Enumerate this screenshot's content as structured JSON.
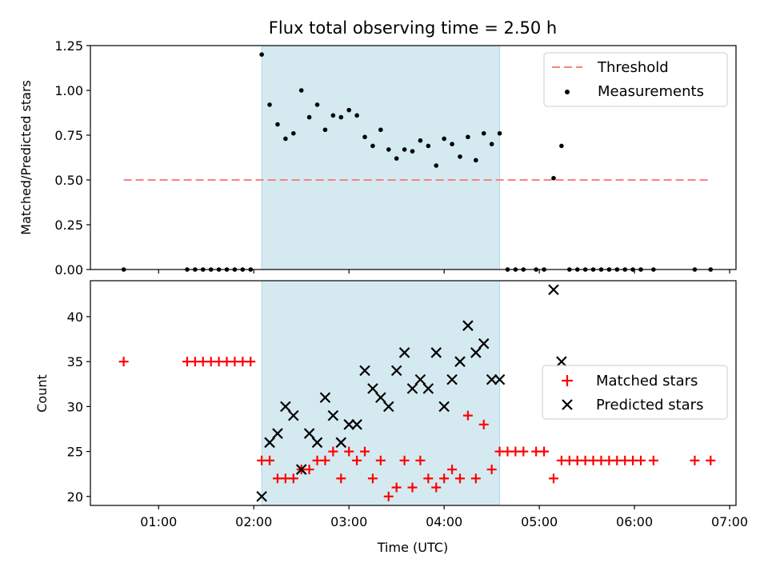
{
  "chart_data": [
    {
      "type": "scatter",
      "title": "Flux total observing time = 2.50 h",
      "xlabel": "",
      "ylabel": "Matched/Predicted stars",
      "xlim": [
        "00:17",
        "07:04"
      ],
      "ylim": [
        0,
        1.25
      ],
      "xticks": [
        "01:00",
        "02:00",
        "03:00",
        "04:00",
        "05:00",
        "06:00",
        "07:00"
      ],
      "yticks": [
        "0.00",
        "0.25",
        "0.50",
        "0.75",
        "1.00",
        "1.25"
      ],
      "highlight_span": {
        "start": "02:05",
        "end": "04:35",
        "color": "#d4eaf0"
      },
      "threshold": {
        "name": "Threshold",
        "value": 0.5,
        "x_start": "00:38",
        "x_end": "06:48",
        "color": "#ff7f7f"
      },
      "legend_position": "top-right",
      "series": [
        {
          "name": "Measurements",
          "color": "#000000",
          "marker": "dot",
          "points": [
            [
              "00:38",
              0
            ],
            [
              "01:18",
              0
            ],
            [
              "01:23",
              0
            ],
            [
              "01:28",
              0
            ],
            [
              "01:33",
              0
            ],
            [
              "01:38",
              0
            ],
            [
              "01:43",
              0
            ],
            [
              "01:48",
              0
            ],
            [
              "01:53",
              0
            ],
            [
              "01:58",
              0
            ],
            [
              "02:05",
              1.2
            ],
            [
              "02:10",
              0.92
            ],
            [
              "02:15",
              0.81
            ],
            [
              "02:20",
              0.73
            ],
            [
              "02:25",
              0.76
            ],
            [
              "02:30",
              1.0
            ],
            [
              "02:35",
              0.85
            ],
            [
              "02:40",
              0.92
            ],
            [
              "02:45",
              0.78
            ],
            [
              "02:50",
              0.86
            ],
            [
              "02:55",
              0.85
            ],
            [
              "03:00",
              0.89
            ],
            [
              "03:05",
              0.86
            ],
            [
              "03:10",
              0.74
            ],
            [
              "03:15",
              0.69
            ],
            [
              "03:20",
              0.78
            ],
            [
              "03:25",
              0.67
            ],
            [
              "03:30",
              0.62
            ],
            [
              "03:35",
              0.67
            ],
            [
              "03:40",
              0.66
            ],
            [
              "03:45",
              0.72
            ],
            [
              "03:50",
              0.69
            ],
            [
              "03:55",
              0.58
            ],
            [
              "04:00",
              0.73
            ],
            [
              "04:05",
              0.7
            ],
            [
              "04:10",
              0.63
            ],
            [
              "04:15",
              0.74
            ],
            [
              "04:20",
              0.61
            ],
            [
              "04:25",
              0.76
            ],
            [
              "04:30",
              0.7
            ],
            [
              "04:35",
              0.76
            ],
            [
              "04:40",
              0
            ],
            [
              "04:45",
              0
            ],
            [
              "04:50",
              0
            ],
            [
              "04:58",
              0
            ],
            [
              "05:03",
              0
            ],
            [
              "05:09",
              0.51
            ],
            [
              "05:14",
              0.69
            ],
            [
              "05:19",
              0
            ],
            [
              "05:24",
              0
            ],
            [
              "05:29",
              0
            ],
            [
              "05:34",
              0
            ],
            [
              "05:39",
              0
            ],
            [
              "05:44",
              0
            ],
            [
              "05:49",
              0
            ],
            [
              "05:54",
              0
            ],
            [
              "05:59",
              0
            ],
            [
              "06:04",
              0
            ],
            [
              "06:12",
              0
            ],
            [
              "06:38",
              0
            ],
            [
              "06:48",
              0
            ]
          ]
        }
      ]
    },
    {
      "type": "scatter",
      "title": "",
      "xlabel": "Time (UTC)",
      "ylabel": "Count",
      "xlim": [
        "00:17",
        "07:04"
      ],
      "ylim": [
        19,
        44
      ],
      "xticks": [
        "01:00",
        "02:00",
        "03:00",
        "04:00",
        "05:00",
        "06:00",
        "07:00"
      ],
      "yticks": [
        "20",
        "25",
        "30",
        "35",
        "40"
      ],
      "highlight_span": {
        "start": "02:05",
        "end": "04:35",
        "color": "#d4eaf0"
      },
      "legend_position": "center-right",
      "series": [
        {
          "name": "Matched stars",
          "color": "#ff0000",
          "marker": "plus",
          "points": [
            [
              "00:38",
              35
            ],
            [
              "01:18",
              35
            ],
            [
              "01:23",
              35
            ],
            [
              "01:28",
              35
            ],
            [
              "01:33",
              35
            ],
            [
              "01:38",
              35
            ],
            [
              "01:43",
              35
            ],
            [
              "01:48",
              35
            ],
            [
              "01:53",
              35
            ],
            [
              "01:58",
              35
            ],
            [
              "02:05",
              24
            ],
            [
              "02:10",
              24
            ],
            [
              "02:15",
              22
            ],
            [
              "02:20",
              22
            ],
            [
              "02:25",
              22
            ],
            [
              "02:30",
              23
            ],
            [
              "02:35",
              23
            ],
            [
              "02:40",
              24
            ],
            [
              "02:45",
              24
            ],
            [
              "02:50",
              25
            ],
            [
              "02:55",
              22
            ],
            [
              "03:00",
              25
            ],
            [
              "03:05",
              24
            ],
            [
              "03:10",
              25
            ],
            [
              "03:15",
              22
            ],
            [
              "03:20",
              24
            ],
            [
              "03:25",
              20
            ],
            [
              "03:30",
              21
            ],
            [
              "03:35",
              24
            ],
            [
              "03:40",
              21
            ],
            [
              "03:45",
              24
            ],
            [
              "03:50",
              22
            ],
            [
              "03:55",
              21
            ],
            [
              "04:00",
              22
            ],
            [
              "04:05",
              23
            ],
            [
              "04:10",
              22
            ],
            [
              "04:15",
              29
            ],
            [
              "04:20",
              22
            ],
            [
              "04:25",
              28
            ],
            [
              "04:30",
              23
            ],
            [
              "04:35",
              25
            ],
            [
              "04:40",
              25
            ],
            [
              "04:45",
              25
            ],
            [
              "04:50",
              25
            ],
            [
              "04:58",
              25
            ],
            [
              "05:03",
              25
            ],
            [
              "05:09",
              22
            ],
            [
              "05:14",
              24
            ],
            [
              "05:19",
              24
            ],
            [
              "05:24",
              24
            ],
            [
              "05:29",
              24
            ],
            [
              "05:34",
              24
            ],
            [
              "05:39",
              24
            ],
            [
              "05:44",
              24
            ],
            [
              "05:49",
              24
            ],
            [
              "05:54",
              24
            ],
            [
              "05:59",
              24
            ],
            [
              "06:04",
              24
            ],
            [
              "06:12",
              24
            ],
            [
              "06:38",
              24
            ],
            [
              "06:48",
              24
            ]
          ]
        },
        {
          "name": "Predicted stars",
          "color": "#000000",
          "marker": "x",
          "points": [
            [
              "02:05",
              20
            ],
            [
              "02:10",
              26
            ],
            [
              "02:15",
              27
            ],
            [
              "02:20",
              30
            ],
            [
              "02:25",
              29
            ],
            [
              "02:30",
              23
            ],
            [
              "02:35",
              27
            ],
            [
              "02:40",
              26
            ],
            [
              "02:45",
              31
            ],
            [
              "02:50",
              29
            ],
            [
              "02:55",
              26
            ],
            [
              "03:00",
              28
            ],
            [
              "03:05",
              28
            ],
            [
              "03:10",
              34
            ],
            [
              "03:15",
              32
            ],
            [
              "03:20",
              31
            ],
            [
              "03:25",
              30
            ],
            [
              "03:30",
              34
            ],
            [
              "03:35",
              36
            ],
            [
              "03:40",
              32
            ],
            [
              "03:45",
              33
            ],
            [
              "03:50",
              32
            ],
            [
              "03:55",
              36
            ],
            [
              "04:00",
              30
            ],
            [
              "04:05",
              33
            ],
            [
              "04:10",
              35
            ],
            [
              "04:15",
              39
            ],
            [
              "04:20",
              36
            ],
            [
              "04:25",
              37
            ],
            [
              "04:30",
              33
            ],
            [
              "04:35",
              33
            ],
            [
              "05:09",
              43
            ],
            [
              "05:14",
              35
            ]
          ]
        }
      ]
    }
  ]
}
